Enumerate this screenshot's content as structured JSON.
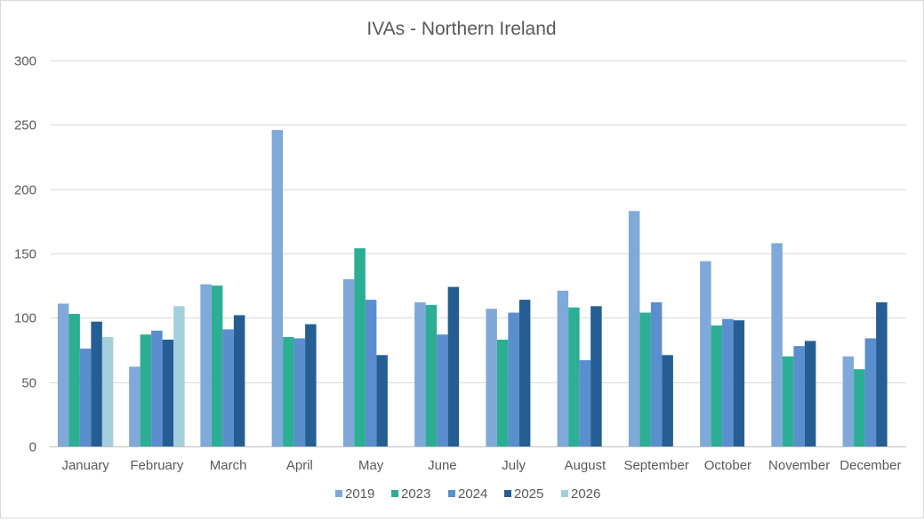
{
  "chart_data": {
    "type": "bar",
    "title": "IVAs - Northern Ireland",
    "xlabel": "",
    "ylabel": "",
    "ylim": [
      0,
      300
    ],
    "yticks": [
      0,
      50,
      100,
      150,
      200,
      250,
      300
    ],
    "grid": true,
    "legend_position": "bottom",
    "categories": [
      "January",
      "February",
      "March",
      "April",
      "May",
      "June",
      "July",
      "August",
      "September",
      "October",
      "November",
      "December"
    ],
    "series": [
      {
        "name": "2019",
        "color": "#7fa9d9",
        "values": [
          111,
          62,
          126,
          246,
          130,
          112,
          107,
          121,
          183,
          144,
          158,
          70
        ]
      },
      {
        "name": "2023",
        "color": "#2bae93",
        "values": [
          103,
          87,
          125,
          85,
          154,
          110,
          83,
          108,
          104,
          94,
          70,
          60
        ]
      },
      {
        "name": "2024",
        "color": "#5a8ecf",
        "values": [
          76,
          90,
          91,
          84,
          114,
          87,
          104,
          67,
          112,
          99,
          78,
          84
        ]
      },
      {
        "name": "2025",
        "color": "#255e92",
        "values": [
          97,
          83,
          102,
          95,
          71,
          124,
          114,
          109,
          71,
          98,
          82,
          112
        ]
      },
      {
        "name": "2026",
        "color": "#a3d0db",
        "values": [
          85,
          109,
          null,
          null,
          null,
          null,
          null,
          null,
          null,
          null,
          null,
          null
        ]
      }
    ]
  }
}
